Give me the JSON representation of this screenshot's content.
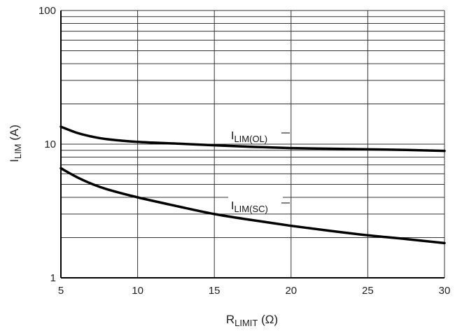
{
  "chart_data": {
    "type": "line",
    "xlabel": {
      "main": "R",
      "sub": "LIMIT",
      "unit": " (Ω)"
    },
    "ylabel": {
      "main": "I",
      "sub": "LIM",
      "unit": " (A)"
    },
    "xlim": [
      5,
      30
    ],
    "ylim": [
      1,
      100
    ],
    "yscale": "log",
    "grid": true,
    "x_ticks": [
      "5",
      "10",
      "15",
      "20",
      "25",
      "30"
    ],
    "y_ticks": [
      "1",
      "10",
      "100"
    ],
    "series": [
      {
        "name": "I_LIM(OL)",
        "label_main": "I",
        "label_sub": "LIM(OL)",
        "x": [
          5,
          6,
          7,
          8,
          10,
          12.5,
          15,
          17.5,
          20,
          22.5,
          25,
          27.5,
          30
        ],
        "y": [
          13.5,
          12.2,
          11.4,
          10.9,
          10.4,
          10.1,
          9.8,
          9.55,
          9.35,
          9.25,
          9.15,
          9.05,
          8.9
        ]
      },
      {
        "name": "I_LIM(SC)",
        "label_main": "I",
        "label_sub": "LIM(SC)",
        "x": [
          5,
          6,
          7,
          8,
          10,
          12.5,
          15,
          17.5,
          20,
          22.5,
          25,
          27.5,
          30
        ],
        "y": [
          6.6,
          5.7,
          5.05,
          4.6,
          4.0,
          3.45,
          3.0,
          2.7,
          2.45,
          2.25,
          2.08,
          1.95,
          1.82
        ]
      }
    ]
  }
}
